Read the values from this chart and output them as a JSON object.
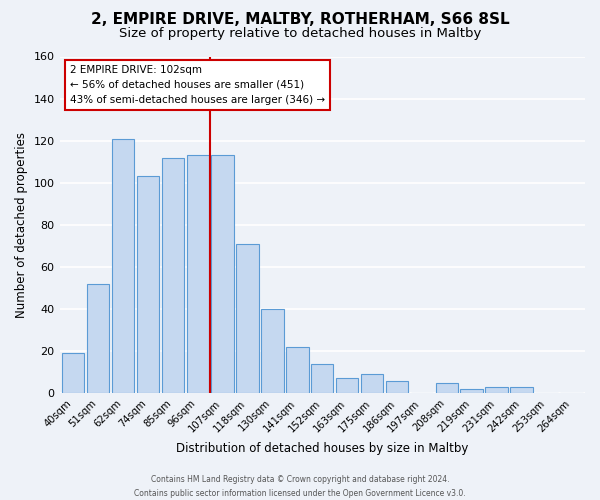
{
  "title": "2, EMPIRE DRIVE, MALTBY, ROTHERHAM, S66 8SL",
  "subtitle": "Size of property relative to detached houses in Maltby",
  "xlabel": "Distribution of detached houses by size in Maltby",
  "ylabel": "Number of detached properties",
  "bar_labels": [
    "40sqm",
    "51sqm",
    "62sqm",
    "74sqm",
    "85sqm",
    "96sqm",
    "107sqm",
    "118sqm",
    "130sqm",
    "141sqm",
    "152sqm",
    "163sqm",
    "175sqm",
    "186sqm",
    "197sqm",
    "208sqm",
    "219sqm",
    "231sqm",
    "242sqm",
    "253sqm",
    "264sqm"
  ],
  "bar_values": [
    19,
    52,
    121,
    103,
    112,
    113,
    113,
    71,
    40,
    22,
    14,
    7,
    9,
    6,
    0,
    5,
    2,
    3,
    3,
    0,
    0
  ],
  "bar_color": "#c5d8f0",
  "bar_edgecolor": "#5b9bd5",
  "vline_x_index": 6,
  "vline_color": "#cc0000",
  "ylim": [
    0,
    160
  ],
  "yticks": [
    0,
    20,
    40,
    60,
    80,
    100,
    120,
    140,
    160
  ],
  "annotation_line1": "2 EMPIRE DRIVE: 102sqm",
  "annotation_line2": "← 56% of detached houses are smaller (451)",
  "annotation_line3": "43% of semi-detached houses are larger (346) →",
  "annotation_box_edgecolor": "#cc0000",
  "annotation_box_facecolor": "#ffffff",
  "footer_line1": "Contains HM Land Registry data © Crown copyright and database right 2024.",
  "footer_line2": "Contains public sector information licensed under the Open Government Licence v3.0.",
  "title_fontsize": 11,
  "subtitle_fontsize": 9.5,
  "background_color": "#eef2f8"
}
